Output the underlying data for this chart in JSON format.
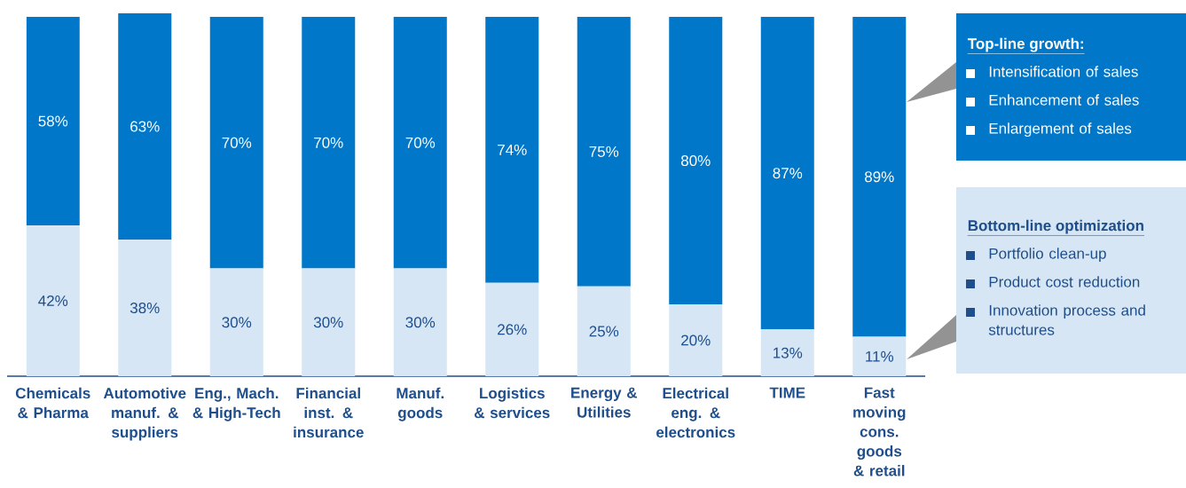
{
  "chart_data": {
    "type": "bar",
    "stacked": true,
    "legend": "right",
    "categories": [
      "Chemicals & Pharma",
      "Automotive manuf. & suppliers",
      "Eng., Mach. & High-Tech",
      "Financial inst. & insurance",
      "Manuf. goods",
      "Logistics & services",
      "Energy & Utilities",
      "Electrical eng. & electronics",
      "TIME",
      "Fast moving cons. goods & retail"
    ],
    "series": [
      {
        "name": "Bottom-line optimization",
        "color": "#d6e6f4",
        "values": [
          42,
          38,
          30,
          30,
          30,
          26,
          25,
          20,
          13,
          11
        ],
        "value_labels": [
          "42%",
          "38%",
          "30%",
          "30%",
          "30%",
          "26%",
          "25%",
          "20%",
          "13%",
          "11%"
        ]
      },
      {
        "name": "Top-line growth:",
        "color": "#0077c8",
        "values": [
          58,
          63,
          70,
          70,
          70,
          74,
          75,
          80,
          87,
          89
        ],
        "value_labels": [
          "58%",
          "63%",
          "70%",
          "70%",
          "70%",
          "74%",
          "75%",
          "80%",
          "87%",
          "89%"
        ]
      }
    ],
    "annotations": [
      "Portfolio clean-up",
      "Product cost reduction",
      "Innovation process and structures",
      "Intensification of sales",
      "Enhancement of sales",
      "Enlargement of sales"
    ]
  }
}
